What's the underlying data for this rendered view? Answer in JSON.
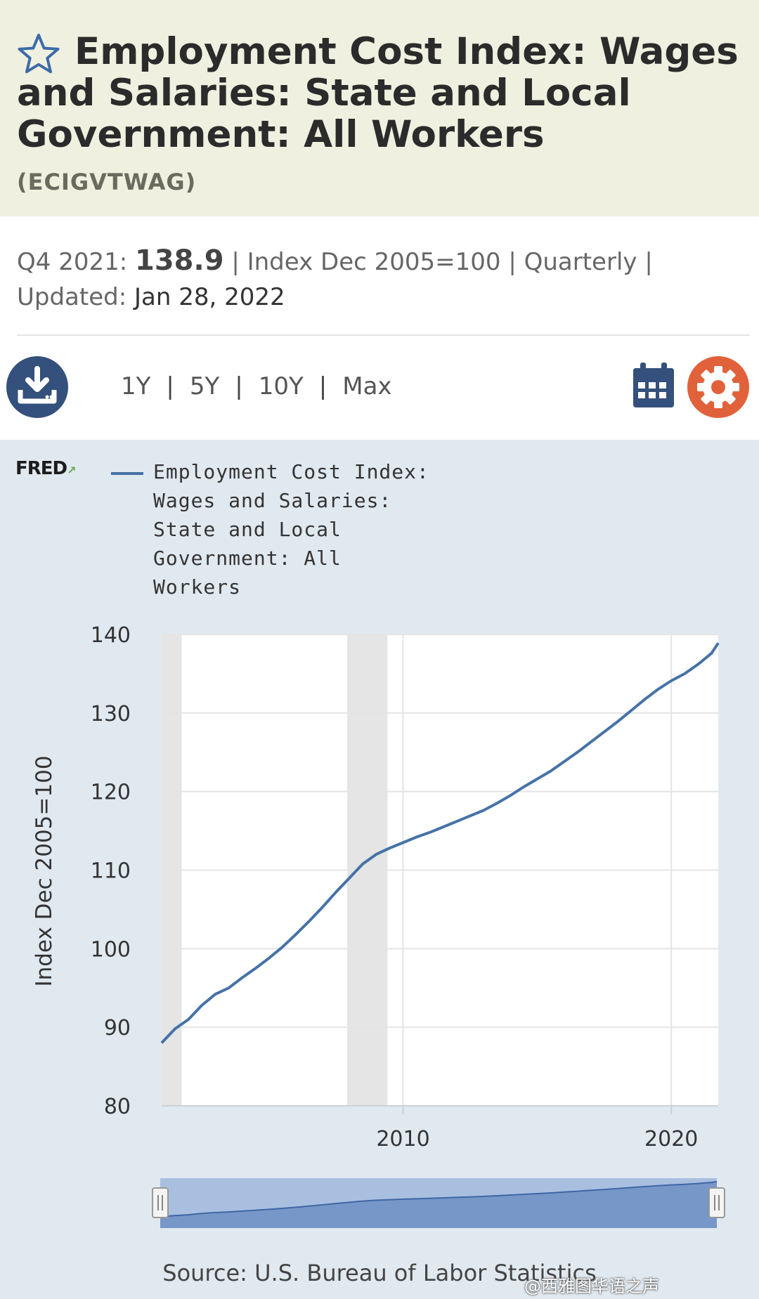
{
  "header": {
    "title": "Employment Cost Index: Wages and Salaries: State and Local Government: All Workers",
    "series_id": "(ECIGVTWAG)"
  },
  "meta": {
    "period_label": "Q4 2021:",
    "value": "138.9",
    "units_text": "| Index Dec 2005=100 | Quarterly |",
    "updated_label": "Updated:",
    "updated_date": "Jan 28, 2022"
  },
  "toolbar": {
    "ranges": [
      "1Y",
      "5Y",
      "10Y",
      "Max"
    ],
    "download_icon": "download-icon",
    "calendar_icon": "calendar-icon",
    "settings_icon": "gear-icon"
  },
  "colors": {
    "series": "#4572a7",
    "plot_background": "#ffffff",
    "page_background": "#e1e9f0",
    "recession": "#e5e5e5",
    "header_background": "#f0f0e0",
    "download_button": "#34507c",
    "settings_button": "#e1623a"
  },
  "chart_data": {
    "type": "line",
    "logo": "FRED",
    "legend": [
      "Employment Cost Index: Wages and Salaries: State and Local Government: All Workers"
    ],
    "ylabel": "Index Dec 2005=100",
    "xlabel": "",
    "yticks": [
      80,
      90,
      100,
      110,
      120,
      130,
      140
    ],
    "xticks": [
      {
        "label": "2010",
        "value": 2010
      },
      {
        "label": "2020",
        "value": 2020
      }
    ],
    "ylim": [
      80,
      140
    ],
    "xlim": [
      2001.0,
      2021.75
    ],
    "recessions": [
      [
        2001.0,
        2001.75
      ],
      [
        2007.92,
        2009.42
      ]
    ],
    "grid": true,
    "series": [
      {
        "name": "Employment Cost Index: Wages and Salaries: State and Local Government: All Workers",
        "x": [
          2001.0,
          2001.5,
          2002.0,
          2002.5,
          2003.0,
          2003.5,
          2004.0,
          2004.5,
          2005.0,
          2005.5,
          2006.0,
          2006.5,
          2007.0,
          2007.5,
          2008.0,
          2008.5,
          2009.0,
          2009.5,
          2010.0,
          2010.5,
          2011.0,
          2011.5,
          2012.0,
          2012.5,
          2013.0,
          2013.5,
          2014.0,
          2014.5,
          2015.0,
          2015.5,
          2016.0,
          2016.5,
          2017.0,
          2017.5,
          2018.0,
          2018.5,
          2019.0,
          2019.5,
          2020.0,
          2020.5,
          2021.0,
          2021.5,
          2021.75
        ],
        "values": [
          88.0,
          89.8,
          91.0,
          92.8,
          94.2,
          95.0,
          96.3,
          97.5,
          98.8,
          100.2,
          101.8,
          103.5,
          105.3,
          107.2,
          109.0,
          110.8,
          112.0,
          112.8,
          113.5,
          114.2,
          114.8,
          115.5,
          116.2,
          116.9,
          117.6,
          118.5,
          119.5,
          120.6,
          121.6,
          122.6,
          123.8,
          125.0,
          126.3,
          127.6,
          128.9,
          130.3,
          131.7,
          133.0,
          134.1,
          135.0,
          136.2,
          137.6,
          138.9
        ]
      }
    ]
  },
  "source": "Source: U.S. Bureau of Labor Statistics",
  "watermark": "@西雅图华语之声"
}
